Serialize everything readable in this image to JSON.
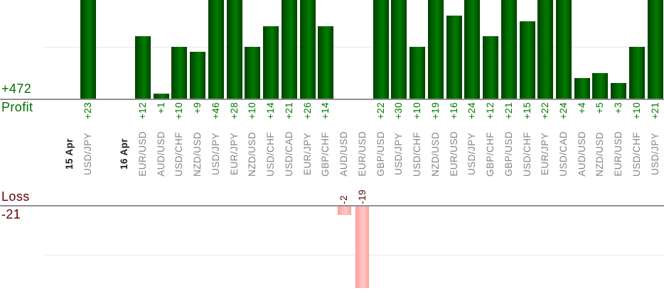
{
  "colors": {
    "profit_bar": "#008000",
    "loss_bar": "#ffb0b0",
    "profit_text": "#007800",
    "profit_total_text": "#007000",
    "loss_text": "#5e0000",
    "pair_label_text": "#848484",
    "date_label_text": "#1a1a1a",
    "axis_line": "#909090",
    "gridline": "#e7e7e7"
  },
  "chart_data": {
    "type": "bar",
    "orientation": "vertical-columns",
    "grid": "horizontal-light",
    "legend": "none",
    "value_label_format": "signed-rotated-90ccw",
    "profit_axis": {
      "label": "Profit",
      "total_label": "+472",
      "total_value": 472,
      "visible_max": 19,
      "gridlines_at": [
        10
      ],
      "clipped_at_top": true
    },
    "loss_axis": {
      "label": "Loss",
      "total_label": "-21",
      "total_value": -21,
      "visible_min": -21,
      "gridlines_at": [
        -11
      ]
    },
    "groups": [
      {
        "date": "15 Apr",
        "trades": [
          {
            "pair": "USD/JPY",
            "value": 23
          }
        ]
      },
      {
        "date": "16 Apr",
        "trades": [
          {
            "pair": "EUR/USD",
            "value": 12
          },
          {
            "pair": "AUD/USD",
            "value": 1
          },
          {
            "pair": "USD/CHF",
            "value": 10
          },
          {
            "pair": "NZD/USD",
            "value": 9
          },
          {
            "pair": "USD/JPY",
            "value": 46
          },
          {
            "pair": "EUR/JPY",
            "value": 28
          },
          {
            "pair": "NZD/USD",
            "value": 10
          },
          {
            "pair": "USD/CHF",
            "value": 14
          },
          {
            "pair": "USD/CAD",
            "value": 21
          },
          {
            "pair": "EUR/JPY",
            "value": 26
          },
          {
            "pair": "GBP/CHF",
            "value": 14
          },
          {
            "pair": "AUD/USD",
            "value": -2
          },
          {
            "pair": "EUR/USD",
            "value": -19
          },
          {
            "pair": "GBP/USD",
            "value": 22
          },
          {
            "pair": "USD/JPY",
            "value": 30
          },
          {
            "pair": "USD/CHF",
            "value": 10
          },
          {
            "pair": "NZD/USD",
            "value": 19
          },
          {
            "pair": "EUR/USD",
            "value": 16
          },
          {
            "pair": "USD/JPY",
            "value": 24
          },
          {
            "pair": "GBP/CHF",
            "value": 12
          },
          {
            "pair": "GBP/USD",
            "value": 21
          },
          {
            "pair": "USD/CHF",
            "value": 15
          },
          {
            "pair": "EUR/JPY",
            "value": 22
          },
          {
            "pair": "USD/CAD",
            "value": 24
          },
          {
            "pair": "AUD/USD",
            "value": 4
          },
          {
            "pair": "NZD/USD",
            "value": 5
          },
          {
            "pair": "EUR/USD",
            "value": 3
          },
          {
            "pair": "USD/CHF",
            "value": 10
          },
          {
            "pair": "USD/JPY",
            "value": 21
          }
        ]
      }
    ]
  }
}
